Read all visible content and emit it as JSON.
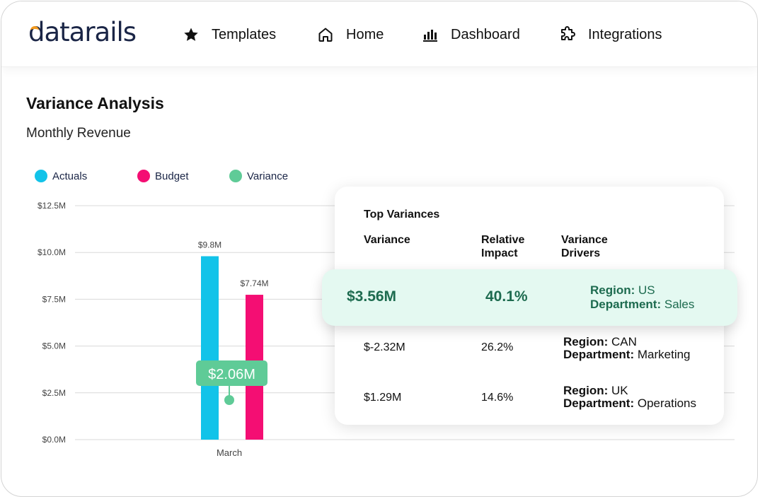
{
  "brand": {
    "logo_text": "datarails",
    "accent": "#f39a1e",
    "text_color": "#1a2546"
  },
  "nav": [
    {
      "label": "Templates",
      "icon": "star-icon"
    },
    {
      "label": "Home",
      "icon": "home-icon"
    },
    {
      "label": "Dashboard",
      "icon": "bar-chart-icon"
    },
    {
      "label": "Integrations",
      "icon": "puzzle-icon"
    }
  ],
  "page": {
    "title": "Variance Analysis",
    "subtitle": "Monthly Revenue"
  },
  "legend": [
    {
      "label": "Actuals",
      "color": "#12c3e9"
    },
    {
      "label": "Budget",
      "color": "#f40e73"
    },
    {
      "label": "Variance",
      "color": "#5fcb97"
    }
  ],
  "chart_data": {
    "type": "bar",
    "categories": [
      "March"
    ],
    "series": [
      {
        "name": "Actuals",
        "values": [
          9.8
        ],
        "color": "#12c3e9",
        "labels": [
          "$9.8M"
        ]
      },
      {
        "name": "Budget",
        "values": [
          7.74
        ],
        "color": "#f40e73",
        "labels": [
          "$7.74M"
        ]
      }
    ],
    "variance": {
      "value": 2.06,
      "label": "$2.06M",
      "color": "#5fcb97"
    },
    "yticks": [
      0,
      2.5,
      5.0,
      7.5,
      10.0,
      12.5
    ],
    "ytick_labels": [
      "$0.0M",
      "$2.5M",
      "$5.0M",
      "$7.5M",
      "$10.0M",
      "$12.5M"
    ],
    "ylim": [
      0,
      12.5
    ],
    "grid": true,
    "legend_position": "top-left"
  },
  "top_variances": {
    "title": "Top Variances",
    "headers": {
      "variance": "Variance",
      "impact_line1": "Relative",
      "impact_line2": "Impact",
      "drivers_line1": "Variance",
      "drivers_line2": "Drivers"
    },
    "highlight": {
      "variance": "$3.56M",
      "impact": "40.1%",
      "region_label": "Region:",
      "region": "US",
      "dept_label": "Department:",
      "dept": "Sales"
    },
    "rows": [
      {
        "variance": "$-2.32M",
        "impact": "26.2%",
        "region_label": "Region:",
        "region": "CAN",
        "dept_label": "Department:",
        "dept": "Marketing"
      },
      {
        "variance": "$1.29M",
        "impact": "14.6%",
        "region_label": "Region:",
        "region": "UK",
        "dept_label": "Department:",
        "dept": "Operations"
      }
    ]
  }
}
